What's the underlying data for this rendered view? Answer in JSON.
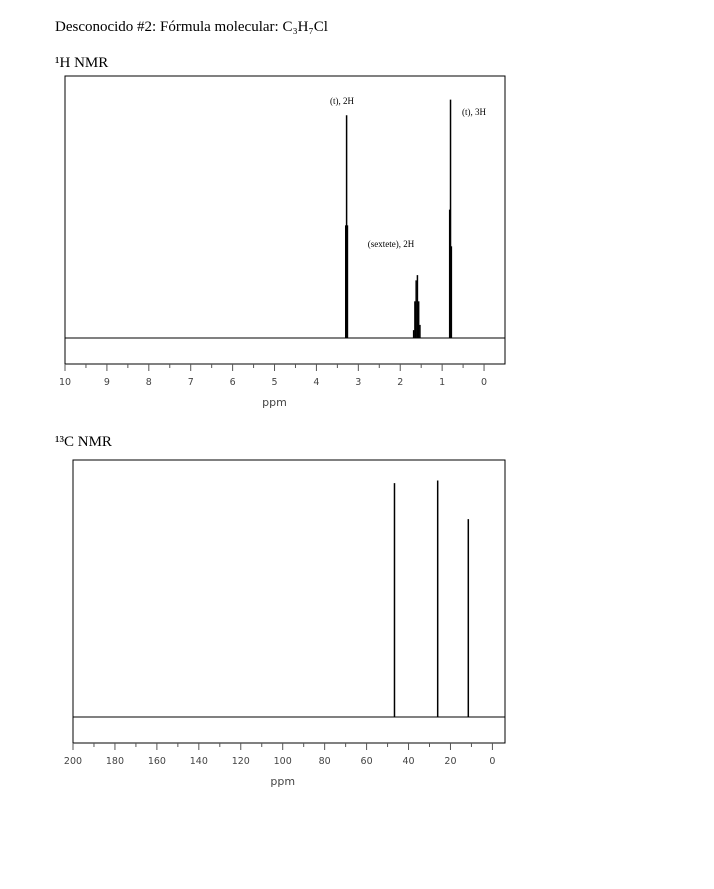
{
  "header": {
    "title": "Desconocido #2: Fórmula molecular: C₃H₇Cl"
  },
  "chart_data": [
    {
      "type": "nmr",
      "title": "¹H NMR",
      "xlabel": "ppm",
      "xlim": [
        10,
        -0.5
      ],
      "xticks": [
        10,
        9,
        8,
        7,
        6,
        5,
        4,
        3,
        2,
        1,
        0
      ],
      "ylim": [
        0,
        100
      ],
      "x": [
        3.3,
        3.28,
        3.26,
        1.68,
        1.65,
        1.62,
        1.59,
        1.56,
        1.53,
        0.82,
        0.8,
        0.78
      ],
      "values": [
        43,
        85,
        43,
        3,
        14,
        22,
        24,
        14,
        5,
        49,
        91,
        35
      ],
      "color": "#000000",
      "annotations": [
        "(t), 2H",
        "(sextete), 2H",
        "(t), 3H"
      ]
    },
    {
      "type": "nmr",
      "title": "¹³C NMR",
      "xlabel": "ppm",
      "xlim": [
        200,
        -6
      ],
      "xticks": [
        200,
        180,
        160,
        140,
        120,
        100,
        80,
        60,
        40,
        20,
        0
      ],
      "ylim": [
        0,
        100
      ],
      "x": [
        46.7,
        26.1,
        11.5
      ],
      "values": [
        91,
        92,
        77
      ],
      "color": "#000000",
      "annotations": []
    }
  ]
}
